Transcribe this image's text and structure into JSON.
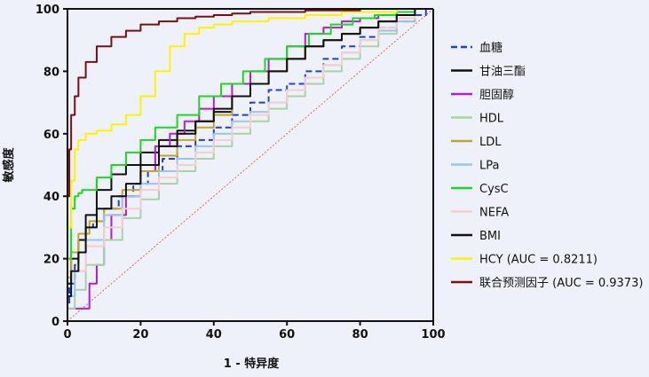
{
  "chart_data": {
    "type": "line",
    "xlabel": "1 - 特异度",
    "ylabel": "敏感度",
    "xlim": [
      0,
      100
    ],
    "ylim": [
      0,
      100
    ],
    "xticks": [
      0,
      20,
      40,
      60,
      80,
      100
    ],
    "yticks": [
      0,
      20,
      40,
      60,
      80,
      100
    ],
    "grid": false,
    "legend_position": "right",
    "reference_line": {
      "x": [
        0,
        100
      ],
      "y": [
        0,
        100
      ],
      "color": "#e0685a",
      "style": "dotted"
    },
    "series": [
      {
        "name": "血糖",
        "color": "#1e3fd8",
        "style": "dashed",
        "x": [
          0,
          0.5,
          2,
          3,
          5,
          7,
          10,
          14,
          18,
          22,
          26,
          30,
          35,
          40,
          45,
          50,
          55,
          60,
          65,
          70,
          75,
          80,
          85,
          90,
          95,
          98,
          100
        ],
        "y": [
          0,
          5,
          12,
          18,
          22,
          30,
          32,
          36,
          40,
          44,
          48,
          52,
          56,
          58,
          62,
          66,
          70,
          74,
          76,
          80,
          84,
          88,
          91,
          94,
          96,
          98,
          100
        ]
      },
      {
        "name": "甘油三酯",
        "color": "#111111",
        "style": "solid",
        "x": [
          0,
          1,
          3,
          5,
          8,
          12,
          16,
          20,
          25,
          30,
          35,
          40,
          45,
          50,
          55,
          60,
          65,
          70,
          75,
          80,
          85,
          90,
          95,
          100
        ],
        "y": [
          0,
          12,
          20,
          26,
          34,
          42,
          47,
          50,
          54,
          58,
          61,
          64,
          67,
          72,
          76,
          80,
          84,
          88,
          90,
          92,
          94,
          96,
          98,
          100
        ]
      },
      {
        "name": "胆固醇",
        "color": "#b01ed8",
        "style": "solid",
        "x": [
          0,
          6,
          8,
          10,
          12,
          16,
          20,
          24,
          28,
          32,
          36,
          40,
          45,
          50,
          55,
          60,
          65,
          70,
          75,
          80,
          85,
          90,
          95,
          100
        ],
        "y": [
          0,
          4,
          12,
          18,
          26,
          34,
          40,
          48,
          56,
          60,
          64,
          68,
          72,
          76,
          80,
          84,
          88,
          92,
          94,
          96,
          97,
          98,
          99,
          100
        ]
      },
      {
        "name": "HDL",
        "color": "#a9d3a4",
        "style": "solid",
        "x": [
          0,
          2,
          5,
          10,
          15,
          20,
          25,
          30,
          35,
          40,
          45,
          50,
          55,
          60,
          65,
          70,
          75,
          80,
          85,
          90,
          95,
          100
        ],
        "y": [
          0,
          4,
          10,
          18,
          26,
          33,
          39,
          44,
          48,
          52,
          56,
          60,
          64,
          68,
          72,
          76,
          80,
          84,
          88,
          92,
          96,
          100
        ]
      },
      {
        "name": "LDL",
        "color": "#bfa72a",
        "style": "solid",
        "x": [
          0,
          1,
          3,
          6,
          10,
          15,
          20,
          25,
          30,
          35,
          40,
          45,
          50,
          55,
          60,
          65,
          70,
          75,
          80,
          85,
          90,
          95,
          100
        ],
        "y": [
          0,
          14,
          22,
          28,
          32,
          36,
          42,
          48,
          53,
          58,
          62,
          66,
          72,
          76,
          80,
          84,
          88,
          90,
          92,
          94,
          96,
          98,
          100
        ]
      },
      {
        "name": "LPa",
        "color": "#9cc3ee",
        "style": "solid",
        "x": [
          0,
          2,
          5,
          10,
          15,
          20,
          25,
          30,
          35,
          40,
          45,
          50,
          55,
          60,
          65,
          70,
          75,
          80,
          85,
          90,
          95,
          100
        ],
        "y": [
          0,
          8,
          16,
          26,
          34,
          40,
          44,
          48,
          52,
          56,
          60,
          64,
          67,
          70,
          74,
          78,
          82,
          86,
          90,
          93,
          96,
          100
        ]
      },
      {
        "name": "CysC",
        "color": "#1ed81e",
        "style": "solid",
        "x": [
          0,
          1,
          2,
          3,
          4,
          8,
          12,
          16,
          20,
          24,
          30,
          36,
          42,
          48,
          54,
          60,
          66,
          72,
          78,
          84,
          90,
          95,
          100
        ],
        "y": [
          0,
          20,
          36,
          40,
          41,
          42,
          46,
          50,
          54,
          58,
          62,
          66,
          72,
          76,
          80,
          84,
          88,
          92,
          95,
          97,
          98,
          99,
          100
        ]
      },
      {
        "name": "NEFA",
        "color": "#f5cfc8",
        "style": "solid",
        "x": [
          0,
          5,
          10,
          15,
          20,
          25,
          30,
          35,
          40,
          45,
          50,
          55,
          60,
          65,
          70,
          75,
          80,
          85,
          90,
          95,
          100
        ],
        "y": [
          0,
          16,
          24,
          30,
          36,
          42,
          46,
          50,
          54,
          58,
          62,
          66,
          70,
          74,
          78,
          82,
          86,
          90,
          94,
          97,
          100
        ]
      },
      {
        "name": "BMI",
        "color": "#111111",
        "style": "solid",
        "x": [
          0,
          1,
          3,
          5,
          8,
          12,
          16,
          20,
          25,
          30,
          35,
          40,
          45,
          50,
          55,
          60,
          65,
          70,
          75,
          80,
          85,
          90,
          95,
          100
        ],
        "y": [
          0,
          8,
          16,
          22,
          30,
          36,
          40,
          44,
          50,
          56,
          60,
          64,
          68,
          72,
          76,
          80,
          84,
          88,
          90,
          92,
          94,
          96,
          98,
          100
        ]
      },
      {
        "name": "HCY (AUC = 0.8211)",
        "color": "#fff200",
        "style": "solid",
        "x": [
          0,
          1,
          2,
          3,
          5,
          8,
          12,
          16,
          20,
          24,
          28,
          32,
          36,
          40,
          45,
          50,
          55,
          60,
          65,
          70,
          75,
          80,
          85,
          90,
          95,
          100
        ],
        "y": [
          0,
          30,
          45,
          55,
          58,
          60,
          61,
          63,
          66,
          72,
          80,
          88,
          92,
          94,
          95,
          96,
          96,
          97,
          97,
          98,
          98,
          99,
          99,
          99,
          100,
          100
        ]
      },
      {
        "name": "联合预测因子 (AUC = 0.9373)",
        "color": "#7a1010",
        "style": "solid",
        "x": [
          0,
          0.5,
          1,
          2,
          3,
          5,
          8,
          12,
          16,
          20,
          25,
          30,
          35,
          40,
          45,
          50,
          55,
          60,
          65,
          70,
          75,
          80,
          85,
          90,
          95,
          100
        ],
        "y": [
          0,
          40,
          55,
          66,
          72,
          78,
          83,
          88,
          91,
          93,
          95,
          96,
          97,
          97.5,
          98,
          98.5,
          99,
          99,
          99,
          99.5,
          99.5,
          99.5,
          100,
          100,
          100,
          100
        ]
      }
    ]
  }
}
